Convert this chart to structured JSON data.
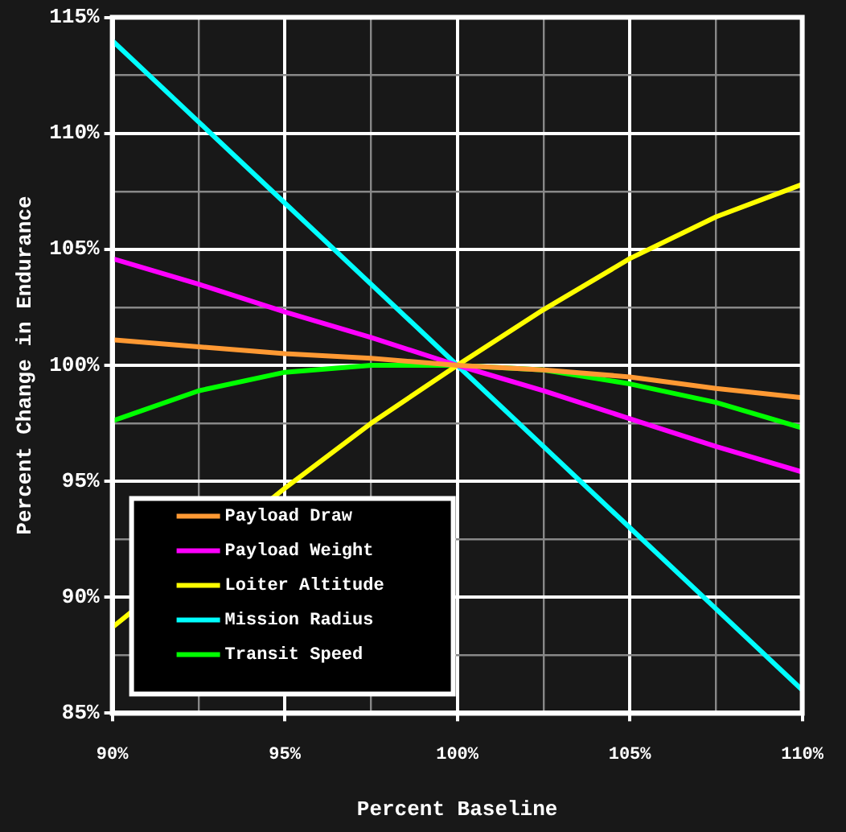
{
  "chart_data": {
    "type": "line",
    "xlabel": "Percent Baseline",
    "ylabel": "Percent Change in Endurance",
    "x": [
      90,
      92.5,
      95,
      97.5,
      100,
      102.5,
      105,
      107.5,
      110
    ],
    "series": [
      {
        "name": "Payload Draw",
        "color": "#ff9933",
        "values": [
          101.1,
          100.8,
          100.5,
          100.3,
          100,
          99.8,
          99.5,
          99.0,
          98.6
        ]
      },
      {
        "name": "Payload Weight",
        "color": "#ff00ff",
        "values": [
          104.6,
          103.5,
          102.3,
          101.2,
          100,
          98.9,
          97.7,
          96.5,
          95.4
        ]
      },
      {
        "name": "Loiter Altitude",
        "color": "#ffff00",
        "values": [
          88.7,
          null,
          94.7,
          97.5,
          100,
          102.4,
          104.6,
          106.4,
          107.8
        ]
      },
      {
        "name": "Mission Radius",
        "color": "#00ffff",
        "values": [
          114.0,
          110.5,
          107.0,
          103.5,
          100,
          96.5,
          93.0,
          89.5,
          86.0
        ]
      },
      {
        "name": "Transit Speed",
        "color": "#00ff00",
        "values": [
          97.6,
          98.9,
          99.7,
          100,
          100,
          99.8,
          99.2,
          98.4,
          97.3
        ]
      }
    ],
    "xlim": [
      90,
      110
    ],
    "xticks": [
      {
        "value": 90,
        "label": "90%"
      },
      {
        "value": 92.5,
        "label": null
      },
      {
        "value": 95,
        "label": "95%"
      },
      {
        "value": 97.5,
        "label": null
      },
      {
        "value": 100,
        "label": "100%"
      },
      {
        "value": 102.5,
        "label": null
      },
      {
        "value": 105,
        "label": "105%"
      },
      {
        "value": 107.5,
        "label": null
      },
      {
        "value": 110,
        "label": "110%"
      }
    ],
    "ylim": [
      85,
      115
    ],
    "yticks": [
      {
        "value": 85,
        "label": "85%"
      },
      {
        "value": 87.5,
        "label": null
      },
      {
        "value": 90,
        "label": "90%"
      },
      {
        "value": 92.5,
        "label": null
      },
      {
        "value": 95,
        "label": "95%"
      },
      {
        "value": 97.5,
        "label": null
      },
      {
        "value": 100,
        "label": "100%"
      },
      {
        "value": 102.5,
        "label": null
      },
      {
        "value": 105,
        "label": "105%"
      },
      {
        "value": 107.5,
        "label": null
      },
      {
        "value": 110,
        "label": "110%"
      },
      {
        "value": 112.5,
        "label": null
      },
      {
        "value": 115,
        "label": "115%"
      }
    ],
    "grid": true,
    "legend": "bottom left",
    "line_style": "solid",
    "marker": "none"
  }
}
